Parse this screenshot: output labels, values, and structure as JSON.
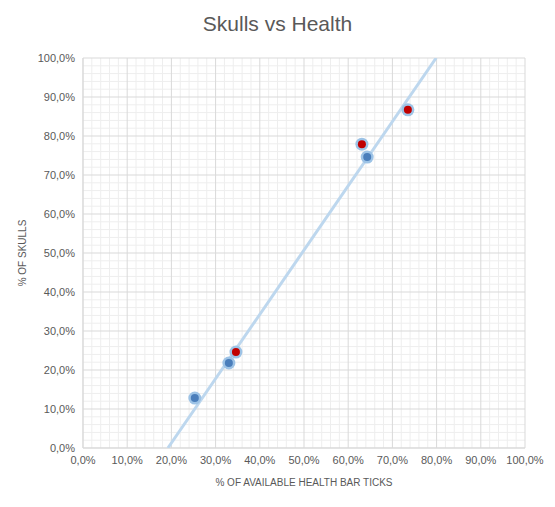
{
  "chart_data": {
    "type": "scatter",
    "title": "Skulls vs Health",
    "x_label": "% OF AVAILABLE HEALTH BAR TICKS",
    "y_label": "% OF SKULLS",
    "xlim": [
      0,
      100
    ],
    "ylim": [
      0,
      100
    ],
    "xticks": [
      {
        "value": 0,
        "label": "0,0%"
      },
      {
        "value": 10,
        "label": "10,0%"
      },
      {
        "value": 20,
        "label": "20,0%"
      },
      {
        "value": 30,
        "label": "30,0%"
      },
      {
        "value": 40,
        "label": "40,0%"
      },
      {
        "value": 50,
        "label": "50,0%"
      },
      {
        "value": 60,
        "label": "60,0%"
      },
      {
        "value": 70,
        "label": "70,0%"
      },
      {
        "value": 80,
        "label": "80,0%"
      },
      {
        "value": 90,
        "label": "90,0%"
      },
      {
        "value": 100,
        "label": "100,0%"
      }
    ],
    "yticks": [
      {
        "value": 0,
        "label": "0,0%"
      },
      {
        "value": 10,
        "label": "10,0%"
      },
      {
        "value": 20,
        "label": "20,0%"
      },
      {
        "value": 30,
        "label": "30,0%"
      },
      {
        "value": 40,
        "label": "40,0%"
      },
      {
        "value": 50,
        "label": "50,0%"
      },
      {
        "value": 60,
        "label": "60,0%"
      },
      {
        "value": 70,
        "label": "70,0%"
      },
      {
        "value": 80,
        "label": "80,0%"
      },
      {
        "value": 90,
        "label": "90,0%"
      },
      {
        "value": 100,
        "label": "100,0%"
      }
    ],
    "grid": true,
    "series": [
      {
        "type": "line",
        "color": "#bdd7ee",
        "line_style": "solid",
        "x": [
          19.2,
          79.9
        ],
        "values": [
          0,
          100
        ]
      },
      {
        "type": "scatter",
        "color": "#4a7ebb",
        "marker": "circle",
        "x": [
          25.3,
          33.0,
          64.3
        ],
        "values": [
          12.8,
          21.8,
          74.6
        ]
      },
      {
        "type": "scatter",
        "color": "#c00000",
        "marker": "circle",
        "x": [
          34.6,
          63.1,
          73.5
        ],
        "values": [
          24.6,
          77.9,
          86.7
        ]
      }
    ]
  }
}
